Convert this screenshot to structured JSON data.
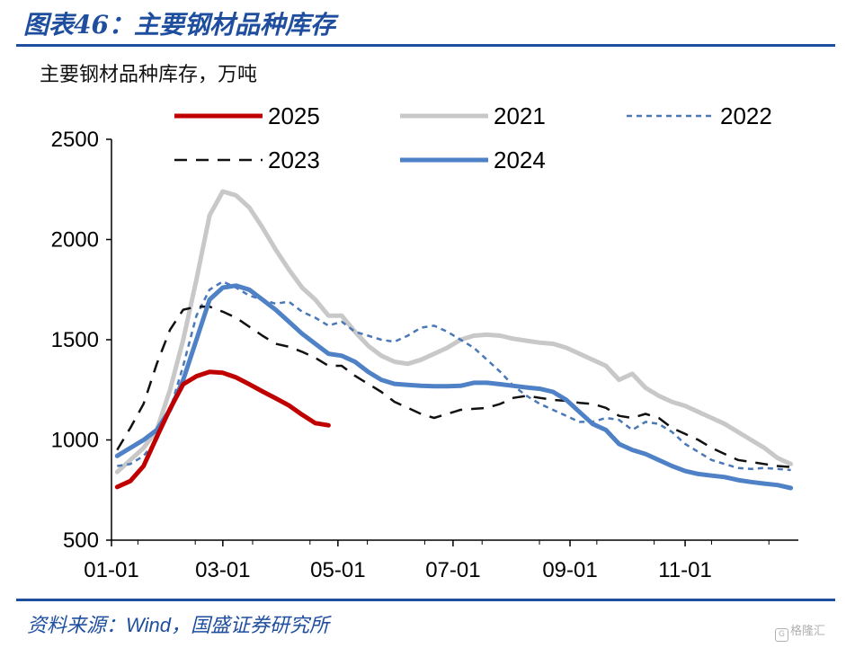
{
  "header": {
    "title": "图表46：主要钢材品种库存"
  },
  "footer": {
    "source_prefix": "资料来源：",
    "source_wind": "Wind",
    "source_suffix": "，国盛证券研究所",
    "watermark": "格隆汇"
  },
  "colors": {
    "brand": "#1f4e9e"
  },
  "chart_data": {
    "type": "line",
    "ylabel": "主要钢材品种库存，万吨",
    "ylim": [
      500,
      2500
    ],
    "y_ticks": [
      500,
      1000,
      1500,
      2000,
      2500
    ],
    "x_ticks": [
      "01-01",
      "03-01",
      "05-01",
      "07-01",
      "09-01",
      "11-01"
    ],
    "x_unit": "day of year",
    "x_tick_positions": [
      1,
      60,
      121,
      182,
      244,
      305
    ],
    "xlim": [
      1,
      365
    ],
    "grid": false,
    "legend": "top",
    "series": [
      {
        "name": "2025",
        "color": "#c00000",
        "width": 5,
        "dash": "",
        "x": [
          4,
          11,
          18,
          25,
          32,
          39,
          46,
          53,
          60,
          67,
          74,
          81,
          88,
          95,
          102,
          109,
          116
        ],
        "y": [
          765,
          795,
          870,
          1015,
          1155,
          1278,
          1318,
          1340,
          1335,
          1312,
          1278,
          1242,
          1208,
          1172,
          1126,
          1084,
          1073
        ]
      },
      {
        "name": "2021",
        "color": "#c8c8c8",
        "width": 5,
        "dash": "",
        "x": [
          4,
          11,
          18,
          25,
          32,
          39,
          46,
          53,
          60,
          67,
          74,
          81,
          88,
          95,
          102,
          109,
          116,
          123,
          130,
          137,
          144,
          151,
          158,
          165,
          172,
          179,
          186,
          193,
          200,
          207,
          214,
          221,
          228,
          235,
          242,
          249,
          256,
          263,
          270,
          277,
          284,
          291,
          298,
          305,
          312,
          319,
          326,
          333,
          340,
          347,
          354,
          361
        ],
        "y": [
          840,
          900,
          960,
          1050,
          1250,
          1500,
          1800,
          2120,
          2240,
          2220,
          2160,
          2060,
          1950,
          1850,
          1760,
          1700,
          1620,
          1620,
          1540,
          1470,
          1420,
          1390,
          1380,
          1400,
          1430,
          1460,
          1500,
          1520,
          1525,
          1520,
          1505,
          1495,
          1485,
          1480,
          1460,
          1430,
          1400,
          1370,
          1300,
          1330,
          1260,
          1220,
          1190,
          1170,
          1140,
          1110,
          1080,
          1040,
          1000,
          960,
          910,
          880
        ]
      },
      {
        "name": "2022",
        "color": "#4a78b8",
        "width": 2.5,
        "dash": "6,5",
        "x": [
          4,
          11,
          18,
          25,
          32,
          39,
          46,
          53,
          60,
          67,
          74,
          81,
          88,
          95,
          102,
          109,
          116,
          123,
          130,
          137,
          144,
          151,
          158,
          165,
          172,
          179,
          186,
          193,
          200,
          207,
          214,
          221,
          228,
          235,
          242,
          249,
          256,
          263,
          270,
          277,
          284,
          291,
          298,
          305,
          312,
          319,
          326,
          333,
          340,
          347,
          354,
          361
        ],
        "y": [
          870,
          880,
          920,
          1000,
          1150,
          1370,
          1620,
          1750,
          1790,
          1760,
          1720,
          1700,
          1680,
          1690,
          1640,
          1610,
          1570,
          1590,
          1540,
          1520,
          1500,
          1490,
          1520,
          1560,
          1570,
          1540,
          1500,
          1460,
          1400,
          1340,
          1270,
          1220,
          1180,
          1150,
          1120,
          1090,
          1090,
          1110,
          1100,
          1050,
          1090,
          1080,
          1040,
          980,
          940,
          900,
          880,
          860,
          855,
          860,
          855,
          850
        ]
      },
      {
        "name": "2023",
        "color": "#111111",
        "width": 2.5,
        "dash": "14,10",
        "x": [
          4,
          11,
          18,
          25,
          32,
          39,
          46,
          53,
          60,
          67,
          74,
          81,
          88,
          95,
          102,
          109,
          116,
          123,
          130,
          137,
          144,
          151,
          158,
          165,
          172,
          179,
          186,
          193,
          200,
          207,
          214,
          221,
          228,
          235,
          242,
          249,
          256,
          263,
          270,
          277,
          284,
          291,
          298,
          305,
          312,
          319,
          326,
          333,
          340,
          347,
          354,
          361
        ],
        "y": [
          950,
          1060,
          1180,
          1380,
          1550,
          1650,
          1665,
          1665,
          1640,
          1610,
          1565,
          1520,
          1480,
          1465,
          1440,
          1410,
          1370,
          1370,
          1320,
          1280,
          1240,
          1190,
          1160,
          1130,
          1110,
          1130,
          1150,
          1155,
          1160,
          1180,
          1210,
          1220,
          1210,
          1200,
          1195,
          1185,
          1180,
          1160,
          1120,
          1110,
          1130,
          1110,
          1060,
          1030,
          1000,
          960,
          930,
          900,
          890,
          880,
          870,
          865
        ]
      },
      {
        "name": "2024",
        "color": "#4f81c7",
        "width": 5,
        "dash": "",
        "x": [
          4,
          11,
          18,
          25,
          32,
          39,
          46,
          53,
          60,
          67,
          74,
          81,
          88,
          95,
          102,
          109,
          116,
          123,
          130,
          137,
          144,
          151,
          158,
          165,
          172,
          179,
          186,
          193,
          200,
          207,
          214,
          221,
          228,
          235,
          242,
          249,
          256,
          263,
          270,
          277,
          284,
          291,
          298,
          305,
          312,
          319,
          326,
          333,
          340,
          347,
          354,
          361
        ],
        "y": [
          920,
          960,
          1000,
          1050,
          1150,
          1300,
          1500,
          1700,
          1760,
          1770,
          1750,
          1700,
          1650,
          1590,
          1530,
          1480,
          1430,
          1420,
          1390,
          1340,
          1300,
          1280,
          1275,
          1270,
          1268,
          1268,
          1270,
          1285,
          1285,
          1278,
          1270,
          1262,
          1255,
          1240,
          1200,
          1140,
          1080,
          1050,
          980,
          950,
          930,
          900,
          870,
          845,
          830,
          822,
          815,
          800,
          790,
          782,
          775,
          760
        ]
      }
    ]
  }
}
